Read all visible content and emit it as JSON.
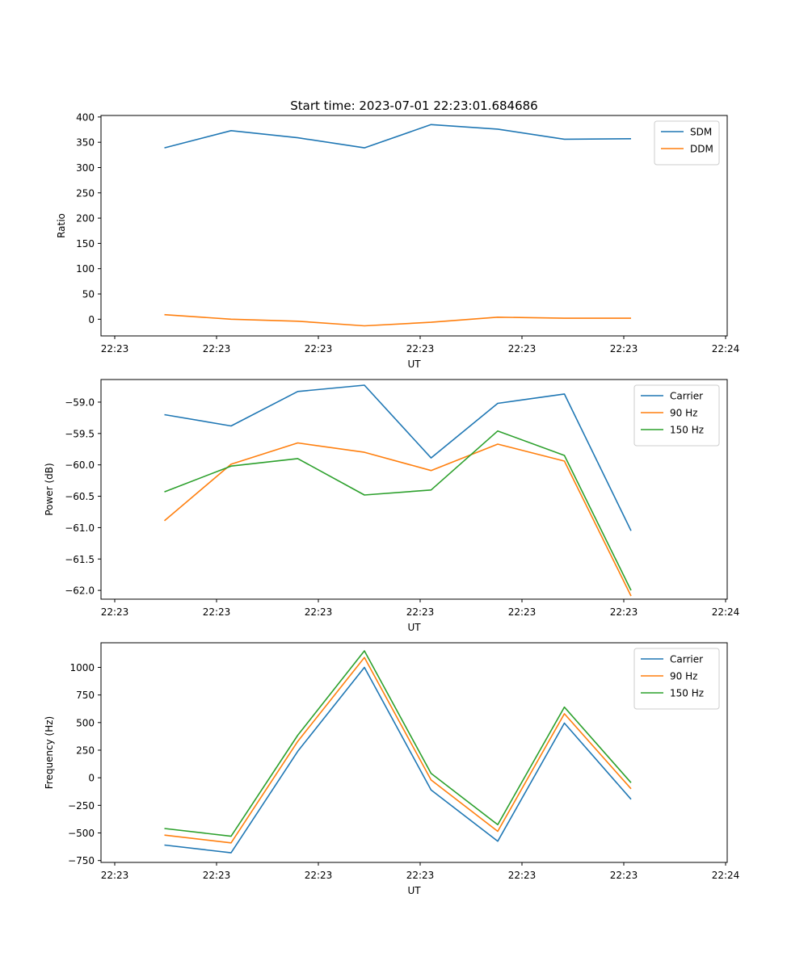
{
  "title": "Start time: 2023-07-01 22:23:01.684686",
  "colors": {
    "blue": "#1f77b4",
    "orange": "#ff7f0e",
    "green": "#2ca02c"
  },
  "chart_data": [
    {
      "type": "line",
      "xlabel": "UT",
      "ylabel": "Ratio",
      "x_tick_labels": [
        "22:23",
        "22:23",
        "22:23",
        "22:23",
        "22:23",
        "22:23",
        "22:24"
      ],
      "y_ticks": [
        0,
        50,
        100,
        150,
        200,
        250,
        300,
        350,
        400
      ],
      "y_tick_labels": [
        "0",
        "50",
        "100",
        "150",
        "200",
        "250",
        "300",
        "350",
        "400"
      ],
      "ylim": [
        -33,
        403
      ],
      "legend": "top-right",
      "series": [
        {
          "name": "SDM",
          "color": "#1f77b4",
          "values": [
            339,
            373,
            359,
            339,
            385,
            376,
            356,
            357
          ]
        },
        {
          "name": "DDM",
          "color": "#ff7f0e",
          "values": [
            9,
            0,
            -4,
            -13,
            -6,
            4,
            2,
            2
          ]
        }
      ]
    },
    {
      "type": "line",
      "xlabel": "UT",
      "ylabel": "Power (dB)",
      "x_tick_labels": [
        "22:23",
        "22:23",
        "22:23",
        "22:23",
        "22:23",
        "22:23",
        "22:24"
      ],
      "y_ticks": [
        -62.0,
        -61.5,
        -61.0,
        -60.5,
        -60.0,
        -59.5,
        -59.0
      ],
      "y_tick_labels": [
        "−62.0",
        "−61.5",
        "−61.0",
        "−60.5",
        "−60.0",
        "−59.5",
        "−59.0"
      ],
      "ylim": [
        -62.14,
        -58.64
      ],
      "legend": "top-right",
      "series": [
        {
          "name": "Carrier",
          "color": "#1f77b4",
          "values": [
            -59.2,
            -59.38,
            -58.83,
            -58.73,
            -59.89,
            -59.02,
            -58.87,
            -61.05
          ]
        },
        {
          "name": "90 Hz",
          "color": "#ff7f0e",
          "values": [
            -60.89,
            -59.99,
            -59.65,
            -59.8,
            -60.09,
            -59.67,
            -59.94,
            -62.09
          ]
        },
        {
          "name": "150 Hz",
          "color": "#2ca02c",
          "values": [
            -60.43,
            -60.02,
            -59.9,
            -60.48,
            -60.4,
            -59.46,
            -59.85,
            -62.0
          ]
        }
      ]
    },
    {
      "type": "line",
      "xlabel": "UT",
      "ylabel": "Frequency (Hz)",
      "x_tick_labels": [
        "22:23",
        "22:23",
        "22:23",
        "22:23",
        "22:23",
        "22:23",
        "22:24"
      ],
      "y_ticks": [
        -750,
        -500,
        -250,
        0,
        250,
        500,
        750,
        1000
      ],
      "y_tick_labels": [
        "−750",
        "−500",
        "−250",
        "0",
        "250",
        "500",
        "750",
        "1000"
      ],
      "ylim": [
        -767,
        1223
      ],
      "legend": "top-right",
      "series": [
        {
          "name": "Carrier",
          "color": "#1f77b4",
          "values": [
            -610,
            -680,
            240,
            1000,
            -110,
            -575,
            495,
            -195
          ]
        },
        {
          "name": "90 Hz",
          "color": "#ff7f0e",
          "values": [
            -520,
            -590,
            330,
            1090,
            -20,
            -485,
            580,
            -100
          ]
        },
        {
          "name": "150 Hz",
          "color": "#2ca02c",
          "values": [
            -460,
            -530,
            385,
            1150,
            40,
            -425,
            640,
            -45
          ]
        }
      ]
    }
  ]
}
